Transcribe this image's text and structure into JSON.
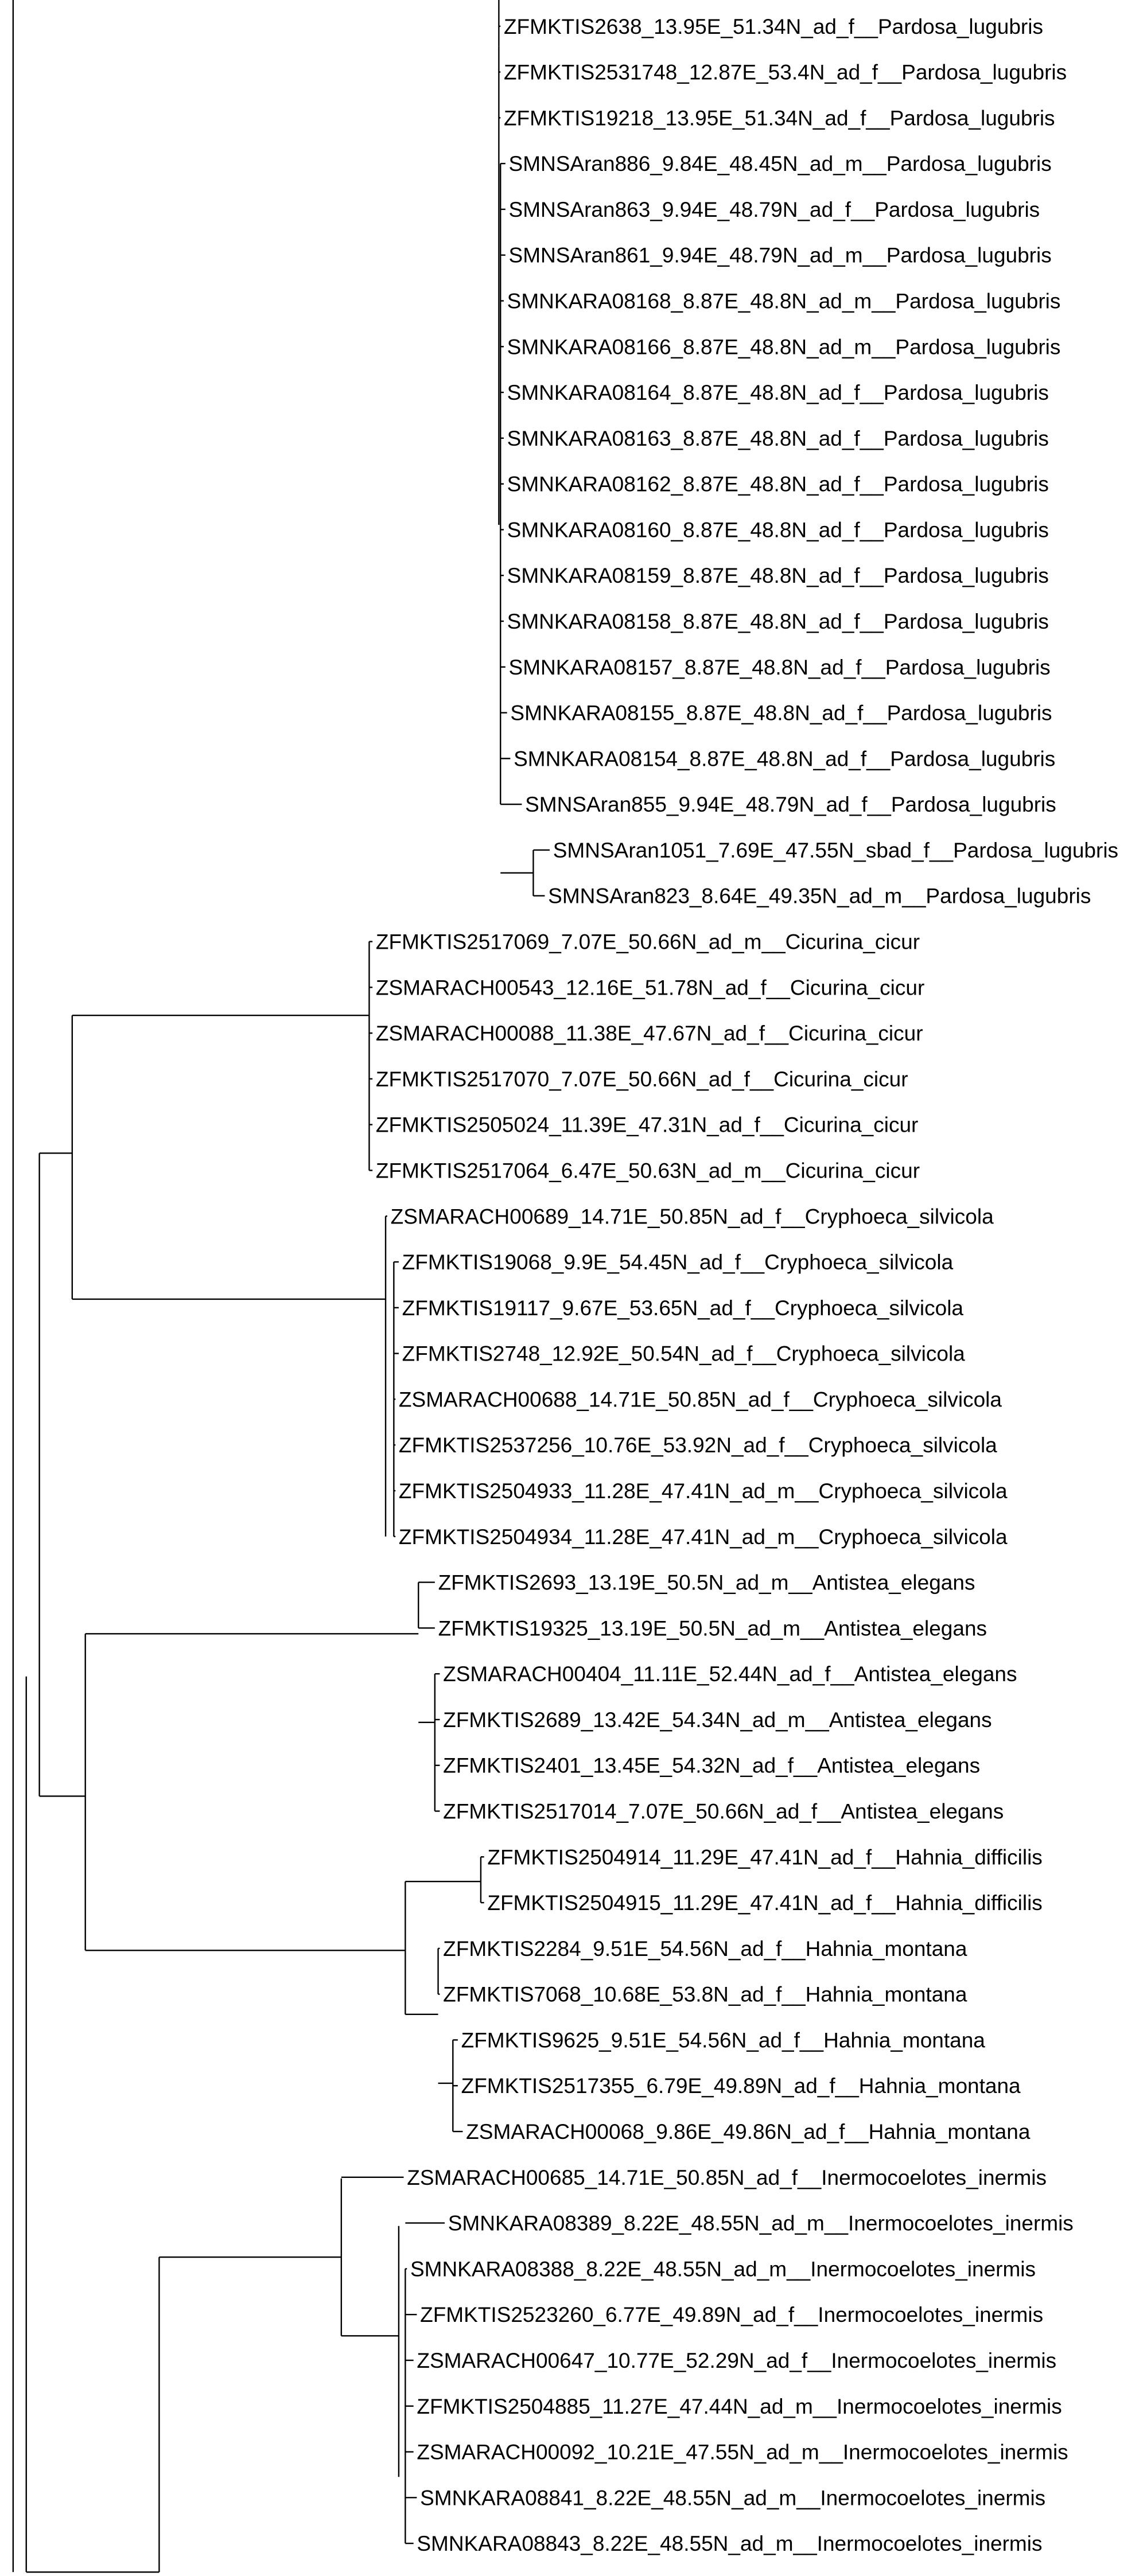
{
  "figure": {
    "type": "phylogenetic-tree",
    "line_color": "#000000",
    "text_color": "#000000",
    "background": "#ffffff"
  },
  "tips": [
    "ZFMKTIS2638_13.95E_51.34N_ad_f__Pardosa_lugubris",
    "ZFMKTIS2531748_12.87E_53.4N_ad_f__Pardosa_lugubris",
    "ZFMKTIS19218_13.95E_51.34N_ad_f__Pardosa_lugubris",
    "SMNSAran886_9.84E_48.45N_ad_m__Pardosa_lugubris",
    "SMNSAran863_9.94E_48.79N_ad_f__Pardosa_lugubris",
    "SMNSAran861_9.94E_48.79N_ad_m__Pardosa_lugubris",
    "SMNKARA08168_8.87E_48.8N_ad_m__Pardosa_lugubris",
    "SMNKARA08166_8.87E_48.8N_ad_m__Pardosa_lugubris",
    "SMNKARA08164_8.87E_48.8N_ad_f__Pardosa_lugubris",
    "SMNKARA08163_8.87E_48.8N_ad_f__Pardosa_lugubris",
    "SMNKARA08162_8.87E_48.8N_ad_f__Pardosa_lugubris",
    "SMNKARA08160_8.87E_48.8N_ad_f__Pardosa_lugubris",
    "SMNKARA08159_8.87E_48.8N_ad_f__Pardosa_lugubris",
    "SMNKARA08158_8.87E_48.8N_ad_f__Pardosa_lugubris",
    "SMNKARA08157_8.87E_48.8N_ad_f__Pardosa_lugubris",
    "SMNKARA08155_8.87E_48.8N_ad_f__Pardosa_lugubris",
    "SMNKARA08154_8.87E_48.8N_ad_f__Pardosa_lugubris",
    "SMNSAran855_9.94E_48.79N_ad_f__Pardosa_lugubris",
    "SMNSAran1051_7.69E_47.55N_sbad_f__Pardosa_lugubris",
    "SMNSAran823_8.64E_49.35N_ad_m__Pardosa_lugubris",
    "ZFMKTIS2517069_7.07E_50.66N_ad_m__Cicurina_cicur",
    "ZSMARACH00543_12.16E_51.78N_ad_f__Cicurina_cicur",
    "ZSMARACH00088_11.38E_47.67N_ad_f__Cicurina_cicur",
    "ZFMKTIS2517070_7.07E_50.66N_ad_f__Cicurina_cicur",
    "ZFMKTIS2505024_11.39E_47.31N_ad_f__Cicurina_cicur",
    "ZFMKTIS2517064_6.47E_50.63N_ad_m__Cicurina_cicur",
    "ZSMARACH00689_14.71E_50.85N_ad_f__Cryphoeca_silvicola",
    "ZFMKTIS19068_9.9E_54.45N_ad_f__Cryphoeca_silvicola",
    "ZFMKTIS19117_9.67E_53.65N_ad_f__Cryphoeca_silvicola",
    "ZFMKTIS2748_12.92E_50.54N_ad_f__Cryphoeca_silvicola",
    "ZSMARACH00688_14.71E_50.85N_ad_f__Cryphoeca_silvicola",
    "ZFMKTIS2537256_10.76E_53.92N_ad_f__Cryphoeca_silvicola",
    "ZFMKTIS2504933_11.28E_47.41N_ad_m__Cryphoeca_silvicola",
    "ZFMKTIS2504934_11.28E_47.41N_ad_m__Cryphoeca_silvicola",
    "ZFMKTIS2693_13.19E_50.5N_ad_m__Antistea_elegans",
    "ZFMKTIS19325_13.19E_50.5N_ad_m__Antistea_elegans",
    "ZSMARACH00404_11.11E_52.44N_ad_f__Antistea_elegans",
    "ZFMKTIS2689_13.42E_54.34N_ad_m__Antistea_elegans",
    "ZFMKTIS2401_13.45E_54.32N_ad_f__Antistea_elegans",
    "ZFMKTIS2517014_7.07E_50.66N_ad_f__Antistea_elegans",
    "ZFMKTIS2504914_11.29E_47.41N_ad_f__Hahnia_difficilis",
    "ZFMKTIS2504915_11.29E_47.41N_ad_f__Hahnia_difficilis",
    "ZFMKTIS2284_9.51E_54.56N_ad_f__Hahnia_montana",
    "ZFMKTIS7068_10.68E_53.8N_ad_f__Hahnia_montana",
    "ZFMKTIS9625_9.51E_54.56N_ad_f__Hahnia_montana",
    "ZFMKTIS2517355_6.79E_49.89N_ad_f__Hahnia_montana",
    "ZSMARACH00068_9.86E_49.86N_ad_f__Hahnia_montana",
    "ZSMARACH00685_14.71E_50.85N_ad_f__Inermocoelotes_inermis",
    "SMNKARA08389_8.22E_48.55N_ad_m__Inermocoelotes_inermis",
    "SMNKARA08388_8.22E_48.55N_ad_m__Inermocoelotes_inermis",
    "ZFMKTIS2523260_6.77E_49.89N_ad_f__Inermocoelotes_inermis",
    "ZSMARACH00647_10.77E_52.29N_ad_f__Inermocoelotes_inermis",
    "ZFMKTIS2504885_11.27E_47.44N_ad_m__Inermocoelotes_inermis",
    "ZSMARACH00092_10.21E_47.55N_ad_m__Inermocoelotes_inermis",
    "SMNKARA08841_8.22E_48.55N_ad_m__Inermocoelotes_inermis",
    "SMNKARA08843_8.22E_48.55N_ad_m__Inermocoelotes_inermis"
  ]
}
